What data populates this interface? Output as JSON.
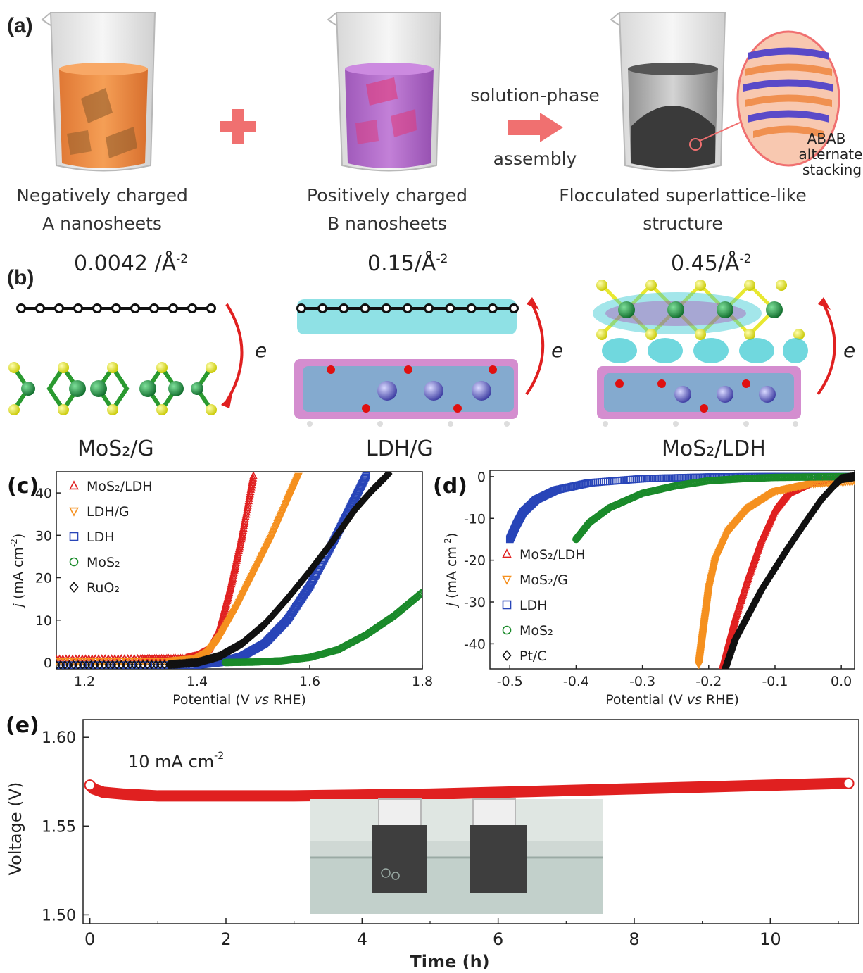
{
  "panel_a": {
    "label": "(a)",
    "caption_a_line1": "Negatively charged",
    "caption_a_line2": "A nanosheets",
    "caption_b_line1": "Positively charged",
    "caption_b_line2": "B nanosheets",
    "arrow_top": "solution-phase",
    "arrow_bottom": "assembly",
    "caption_c_line1": "Flocculated superlattice-like",
    "caption_c_line2": "structure",
    "inset_line1": "ABAB",
    "inset_line2": "alternate",
    "inset_line3": "stacking",
    "colors": {
      "liquid_a": "#f08a3c",
      "liquid_b": "#b065c8",
      "plus": "#f07070",
      "arrow": "#f07070"
    }
  },
  "panel_b": {
    "label": "(b)",
    "densities": [
      "0.0042 /Å",
      "0.15/Å",
      "0.45/Å"
    ],
    "density_exp": "-2",
    "structures": [
      "MoS₂/G",
      "LDH/G",
      "MoS₂/LDH"
    ],
    "electron_label": "e",
    "colors": {
      "graphene": "#111111",
      "sulfur": "#e8e830",
      "molybdenum": "#1e8a3c",
      "charge_acc": "#33c8d0",
      "charge_dep": "#b030a8",
      "oxygen": "#e01010",
      "arrow": "#e02020"
    }
  },
  "chart_data": [
    {
      "panel": "(c)",
      "type": "scatter",
      "xlabel_pre": "Potential (V ",
      "xlabel_vs": "vs",
      "xlabel_post": " RHE)",
      "ylabel_j": "j",
      "ylabel_rest": " (mA cm",
      "ylabel_exp": "-2",
      "ylabel_close": ")",
      "xlim": [
        1.15,
        1.8
      ],
      "ylim": [
        -1.5,
        45
      ],
      "xticks": [
        "1.2",
        "1.4",
        "1.6",
        "1.8"
      ],
      "xtick_values": [
        1.2,
        1.4,
        1.6,
        1.8
      ],
      "yticks": [
        "0",
        "10",
        "20",
        "30",
        "40"
      ],
      "ytick_values": [
        0,
        10,
        20,
        30,
        40
      ],
      "legend_position": "top-left",
      "series": [
        {
          "name": "MoS₂/LDH",
          "marker": "triangle-up",
          "color": "#e02020",
          "x": [
            1.15,
            1.3,
            1.38,
            1.4,
            1.42,
            1.44,
            1.46,
            1.48,
            1.5
          ],
          "y": [
            0.8,
            0.9,
            1.0,
            1.6,
            3.0,
            8.0,
            18.0,
            30.0,
            44.0
          ]
        },
        {
          "name": "LDH/G",
          "marker": "triangle-down",
          "color": "#f5901e",
          "x": [
            1.15,
            1.35,
            1.4,
            1.42,
            1.44,
            1.47,
            1.5,
            1.53,
            1.56,
            1.58
          ],
          "y": [
            0.3,
            0.4,
            1.0,
            2.5,
            6.0,
            13.0,
            21.0,
            29.0,
            38.0,
            44.0
          ]
        },
        {
          "name": "LDH",
          "marker": "square",
          "color": "#2845b8",
          "x": [
            1.15,
            1.4,
            1.44,
            1.48,
            1.52,
            1.56,
            1.6,
            1.64,
            1.67,
            1.7
          ],
          "y": [
            -0.6,
            -0.6,
            0.0,
            1.5,
            4.5,
            10.0,
            18.0,
            28.0,
            36.0,
            44.0
          ]
        },
        {
          "name": "MoS₂",
          "marker": "circle",
          "color": "#1a8a2a",
          "x": [
            1.45,
            1.5,
            1.55,
            1.6,
            1.65,
            1.7,
            1.75,
            1.8
          ],
          "y": [
            0.0,
            0.1,
            0.4,
            1.2,
            3.0,
            6.5,
            11.0,
            16.5
          ]
        },
        {
          "name": "RuO₂",
          "marker": "diamond",
          "color": "#111111",
          "x": [
            1.15,
            1.35,
            1.4,
            1.44,
            1.48,
            1.52,
            1.56,
            1.6,
            1.64,
            1.68,
            1.71,
            1.74
          ],
          "y": [
            -0.6,
            -0.5,
            0.0,
            1.5,
            4.5,
            9.0,
            15.0,
            21.5,
            28.5,
            36.0,
            40.5,
            44.5
          ]
        }
      ]
    },
    {
      "panel": "(d)",
      "type": "scatter",
      "xlabel_pre": "Potential (V ",
      "xlabel_vs": "vs",
      "xlabel_post": " RHE)",
      "ylabel_j": "j",
      "ylabel_rest": " (mA cm",
      "ylabel_exp": "-2",
      "ylabel_close": ")",
      "xlim": [
        -0.53,
        0.02
      ],
      "ylim": [
        -46,
        1.5
      ],
      "xticks": [
        "-0.5",
        "-0.4",
        "-0.3",
        "-0.2",
        "-0.1",
        "0.0"
      ],
      "xtick_values": [
        -0.5,
        -0.4,
        -0.3,
        -0.2,
        -0.1,
        0.0
      ],
      "yticks": [
        "0",
        "-10",
        "-20",
        "-30",
        "-40"
      ],
      "ytick_values": [
        0,
        -10,
        -20,
        -30,
        -40
      ],
      "legend_position": "bottom-left",
      "series": [
        {
          "name": "MoS₂/LDH",
          "marker": "triangle-up",
          "color": "#e02020",
          "x": [
            0.02,
            -0.02,
            -0.05,
            -0.08,
            -0.1,
            -0.12,
            -0.14,
            -0.16,
            -0.17,
            -0.18
          ],
          "y": [
            -0.3,
            -0.8,
            -1.8,
            -4.0,
            -8.0,
            -15.0,
            -24.0,
            -34.0,
            -40.0,
            -46.0
          ]
        },
        {
          "name": "MoS₂/G",
          "marker": "triangle-down",
          "color": "#f5901e",
          "x": [
            0.02,
            -0.05,
            -0.1,
            -0.14,
            -0.17,
            -0.19,
            -0.2,
            -0.205,
            -0.21,
            -0.215
          ],
          "y": [
            -1.0,
            -1.8,
            -3.5,
            -7.5,
            -13.0,
            -20.0,
            -27.0,
            -33.0,
            -39.0,
            -45.0
          ]
        },
        {
          "name": "LDH",
          "marker": "square",
          "color": "#2845b8",
          "x": [
            0.02,
            -0.1,
            -0.2,
            -0.3,
            -0.38,
            -0.43,
            -0.46,
            -0.48,
            -0.49,
            -0.5
          ],
          "y": [
            0.0,
            0.0,
            -0.1,
            -0.5,
            -1.5,
            -3.2,
            -5.5,
            -8.5,
            -11.5,
            -15.0
          ]
        },
        {
          "name": "MoS₂",
          "marker": "circle",
          "color": "#1a8a2a",
          "x": [
            0.02,
            -0.05,
            -0.1,
            -0.15,
            -0.2,
            -0.25,
            -0.3,
            -0.35,
            -0.38,
            -0.4
          ],
          "y": [
            0.0,
            -0.1,
            -0.2,
            -0.5,
            -1.0,
            -2.2,
            -4.0,
            -7.5,
            -11.0,
            -15.0
          ]
        },
        {
          "name": "Pt/C",
          "marker": "diamond",
          "color": "#111111",
          "x": [
            0.02,
            0.0,
            -0.01,
            -0.03,
            -0.05,
            -0.08,
            -0.1,
            -0.12,
            -0.14,
            -0.16,
            -0.175
          ],
          "y": [
            0.0,
            -0.5,
            -2.0,
            -5.5,
            -10.0,
            -17.0,
            -22.0,
            -27.0,
            -33.0,
            -39.0,
            -46.0
          ]
        }
      ]
    },
    {
      "panel": "(e)",
      "type": "line",
      "annotation_pre": "10 mA cm",
      "annotation_exp": "-2",
      "xlabel": "Time (h)",
      "ylabel": "Voltage (V)",
      "xlim": [
        -0.1,
        11.3
      ],
      "ylim": [
        1.495,
        1.61
      ],
      "xticks": [
        "0",
        "2",
        "4",
        "6",
        "8",
        "10"
      ],
      "xtick_values": [
        0,
        2,
        4,
        6,
        8,
        10
      ],
      "yticks": [
        "1.50",
        "1.55",
        "1.60"
      ],
      "ytick_values": [
        1.5,
        1.55,
        1.6
      ],
      "series": [
        {
          "color": "#e02020",
          "x": [
            0,
            0.05,
            0.2,
            0.5,
            1,
            2,
            3,
            4,
            5,
            6,
            7,
            8,
            9,
            10,
            11,
            11.15
          ],
          "y": [
            1.573,
            1.571,
            1.569,
            1.568,
            1.567,
            1.567,
            1.567,
            1.5675,
            1.568,
            1.569,
            1.57,
            1.571,
            1.572,
            1.573,
            1.574,
            1.574
          ]
        }
      ]
    }
  ]
}
